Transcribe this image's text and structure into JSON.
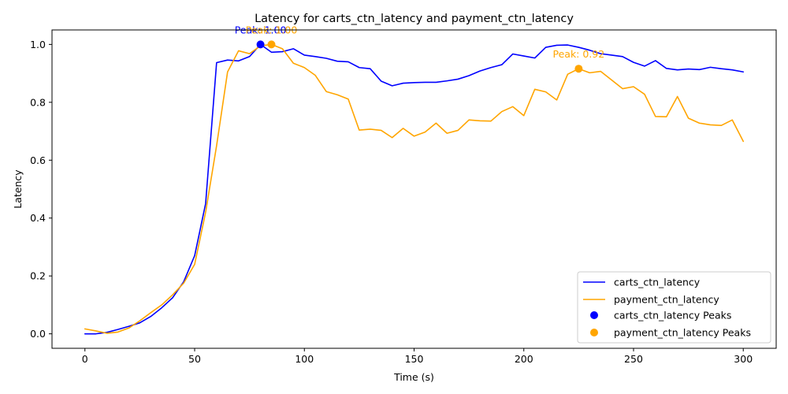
{
  "chart_data": {
    "type": "line",
    "title": "Latency for carts_ctn_latency and payment_ctn_latency",
    "xlabel": "Time (s)",
    "ylabel": "Latency",
    "xlim": [
      -15,
      315
    ],
    "ylim": [
      -0.05,
      1.05
    ],
    "xticks": [
      0,
      50,
      100,
      150,
      200,
      250,
      300
    ],
    "yticks": [
      0.0,
      0.2,
      0.4,
      0.6,
      0.8,
      1.0
    ],
    "grid": false,
    "legend_position": "bottom-right",
    "series": [
      {
        "name": "carts_ctn_latency",
        "color": "#0000ff",
        "x": [
          0,
          5,
          10,
          15,
          20,
          25,
          30,
          35,
          40,
          45,
          50,
          55,
          60,
          65,
          70,
          75,
          80,
          85,
          90,
          95,
          100,
          105,
          110,
          115,
          120,
          125,
          130,
          135,
          140,
          145,
          150,
          155,
          160,
          165,
          170,
          175,
          180,
          185,
          190,
          195,
          200,
          205,
          210,
          215,
          220,
          225,
          230,
          235,
          240,
          245,
          250,
          255,
          260,
          265,
          270,
          275,
          280,
          285,
          290,
          295,
          300
        ],
        "y": [
          0.0,
          0.0,
          0.005,
          0.015,
          0.026,
          0.038,
          0.06,
          0.09,
          0.125,
          0.18,
          0.27,
          0.45,
          0.937,
          0.946,
          0.943,
          0.958,
          1.0,
          0.973,
          0.975,
          0.985,
          0.963,
          0.958,
          0.952,
          0.942,
          0.94,
          0.92,
          0.916,
          0.873,
          0.857,
          0.866,
          0.868,
          0.869,
          0.869,
          0.874,
          0.88,
          0.892,
          0.908,
          0.92,
          0.93,
          0.967,
          0.96,
          0.953,
          0.99,
          0.997,
          0.998,
          0.99,
          0.98,
          0.968,
          0.963,
          0.958,
          0.938,
          0.925,
          0.944,
          0.917,
          0.912,
          0.915,
          0.913,
          0.921,
          0.916,
          0.912,
          0.905
        ]
      },
      {
        "name": "payment_ctn_latency",
        "color": "#ffa500",
        "x": [
          0,
          5,
          10,
          15,
          20,
          25,
          30,
          35,
          40,
          45,
          50,
          55,
          60,
          65,
          70,
          75,
          80,
          85,
          90,
          95,
          100,
          105,
          110,
          115,
          120,
          125,
          130,
          135,
          140,
          145,
          150,
          155,
          160,
          165,
          170,
          175,
          180,
          185,
          190,
          195,
          200,
          205,
          210,
          215,
          220,
          225,
          230,
          235,
          240,
          245,
          250,
          255,
          260,
          265,
          270,
          275,
          280,
          285,
          290,
          295,
          300
        ],
        "y": [
          0.017,
          0.01,
          0.002,
          0.006,
          0.02,
          0.045,
          0.073,
          0.1,
          0.135,
          0.175,
          0.24,
          0.42,
          0.65,
          0.905,
          0.978,
          0.968,
          0.995,
          1.0,
          0.985,
          0.935,
          0.92,
          0.893,
          0.837,
          0.826,
          0.811,
          0.704,
          0.707,
          0.703,
          0.678,
          0.71,
          0.683,
          0.697,
          0.728,
          0.693,
          0.703,
          0.739,
          0.736,
          0.735,
          0.768,
          0.785,
          0.754,
          0.845,
          0.836,
          0.808,
          0.897,
          0.916,
          0.902,
          0.907,
          0.877,
          0.847,
          0.854,
          0.828,
          0.751,
          0.75,
          0.82,
          0.745,
          0.728,
          0.722,
          0.72,
          0.739,
          0.665
        ]
      }
    ],
    "peaks": [
      {
        "series": "carts_ctn_latency",
        "legend": "carts_ctn_latency Peaks",
        "x": 80,
        "y": 1.0,
        "label": "Peak: 1.00",
        "color": "#0000ff"
      },
      {
        "series": "payment_ctn_latency",
        "legend": "payment_ctn_latency Peaks",
        "x": 85,
        "y": 1.0,
        "label": "Peak: 1.00",
        "color": "#ffa500"
      },
      {
        "series": "payment_ctn_latency",
        "x": 225,
        "y": 0.916,
        "label": "Peak: 0.92",
        "color": "#ffa500"
      }
    ]
  }
}
